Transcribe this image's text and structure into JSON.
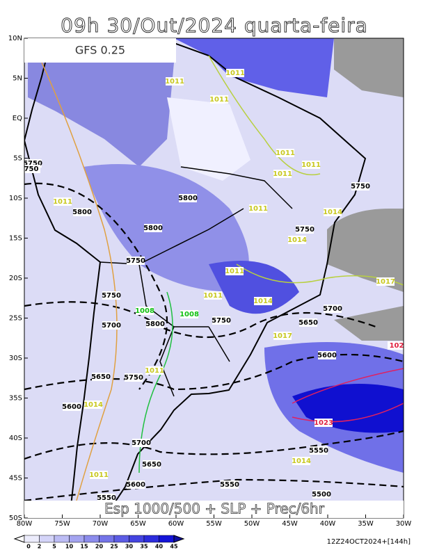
{
  "header": {
    "title": "09h 30/Out/2024 quarta-feira",
    "model": "GFS 0.25"
  },
  "map": {
    "lat_labels": [
      "10N",
      "5N",
      "EQ",
      "5S",
      "10S",
      "15S",
      "20S",
      "25S",
      "30S",
      "35S",
      "40S",
      "45S",
      "50S"
    ],
    "lon_labels": [
      "80W",
      "75W",
      "70W",
      "65W",
      "60W",
      "55W",
      "50W",
      "45W",
      "40W",
      "35W",
      "30W"
    ],
    "caption": "Esp 1000/500 + SLP + Prec/6hr",
    "timestamp": "12Z24OCT2024+[144h]",
    "contour_labels": [
      "5750",
      "750",
      "5800",
      "5800",
      "5800",
      "5750",
      "5750",
      "5750",
      "5750",
      "5700",
      "5800",
      "5750",
      "5650",
      "5700",
      "5600",
      "5650",
      "5750",
      "5600",
      "5700",
      "5650",
      "5600",
      "5550",
      "5550",
      "5500",
      "5550",
      "1011",
      "1011",
      "1011",
      "1011",
      "1011",
      "1011",
      "1011",
      "1011",
      "1014",
      "1014",
      "1011",
      "1014",
      "1017",
      "1017",
      "1011",
      "1011",
      "1008",
      "1008",
      "1023",
      "102",
      "1014",
      "1014",
      "1011"
    ]
  },
  "colorbar": {
    "ticks": [
      0,
      2,
      5,
      10,
      15,
      20,
      25,
      30,
      35,
      40,
      45
    ],
    "colors": [
      "#ececfc",
      "#d4d4f8",
      "#bcbcf4",
      "#a4a4f0",
      "#8c8cec",
      "#7474e8",
      "#5c5ce4",
      "#4444e0",
      "#2c2cdc",
      "#1414d8"
    ]
  }
}
